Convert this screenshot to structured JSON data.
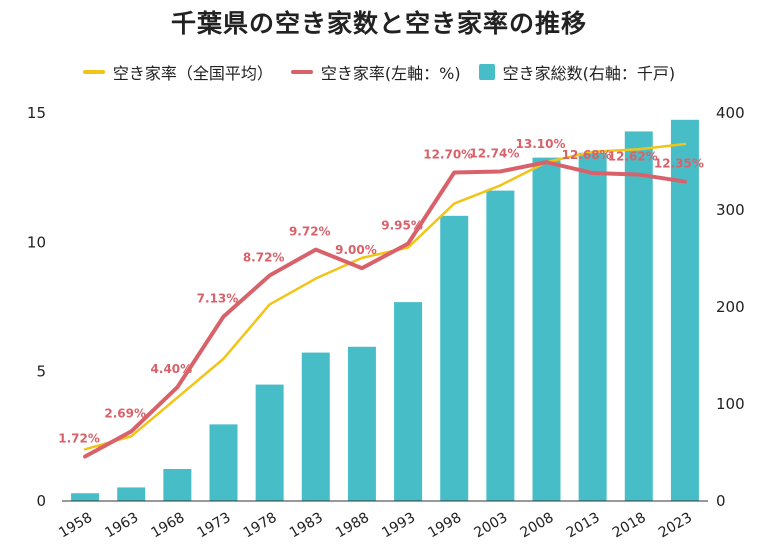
{
  "chart_data": {
    "type": "bar+line",
    "title": "千葉県の空き家数と空き家率の推移",
    "categories": [
      "1958",
      "1963",
      "1968",
      "1973",
      "1978",
      "1983",
      "1988",
      "1993",
      "1998",
      "2003",
      "2008",
      "2013",
      "2018",
      "2023"
    ],
    "legend": [
      {
        "name": "空き家率（全国平均）",
        "kind": "line",
        "color": "#F2C418"
      },
      {
        "name": "空き家率(左軸：%)",
        "kind": "line",
        "color": "#D9626A"
      },
      {
        "name": "空き家総数(右軸：千戸)",
        "kind": "bar",
        "color": "#47BEC7"
      }
    ],
    "series": [
      {
        "name": "空き家総数(右軸：千戸)",
        "axis": "right",
        "type": "bar",
        "color": "#47BEC7",
        "values": [
          8,
          14,
          33,
          79,
          120,
          153,
          159,
          205,
          294,
          320,
          354,
          359,
          381,
          393
        ]
      },
      {
        "name": "空き家率(左軸：%)",
        "axis": "left",
        "type": "line",
        "color": "#D9626A",
        "values": [
          1.72,
          2.69,
          4.4,
          7.13,
          8.72,
          9.72,
          9.0,
          9.95,
          12.7,
          12.74,
          13.1,
          12.68,
          12.62,
          12.35
        ]
      },
      {
        "name": "空き家率（全国平均）",
        "axis": "left",
        "type": "line",
        "color": "#F2C418",
        "values": [
          2.0,
          2.5,
          4.0,
          5.5,
          7.6,
          8.6,
          9.4,
          9.8,
          11.5,
          12.2,
          13.1,
          13.5,
          13.6,
          13.8
        ]
      }
    ],
    "data_labels": [
      "1.72%",
      "2.69%",
      "4.40%",
      "7.13%",
      "8.72%",
      "9.72%",
      "9.00%",
      "9.95%",
      "12.70%",
      "12.74%",
      "13.10%",
      "12.68%",
      "12.62%",
      "12.35%"
    ],
    "left_axis": {
      "min": 0,
      "max": 15,
      "ticks": [
        "0",
        "5",
        "10",
        "15"
      ]
    },
    "right_axis": {
      "min": 0,
      "max": 400,
      "ticks": [
        "0",
        "100",
        "200",
        "300",
        "400"
      ]
    },
    "grid": false,
    "legend_position": "top"
  }
}
